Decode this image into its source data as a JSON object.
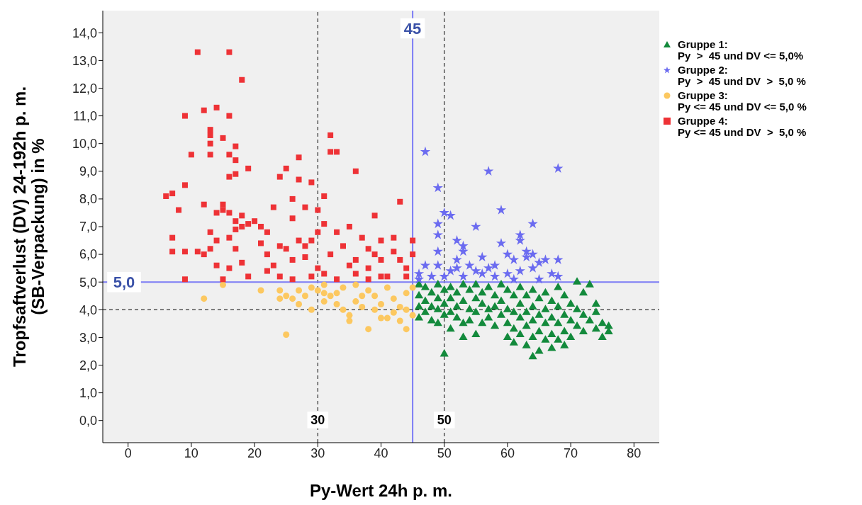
{
  "chart_data": {
    "type": "scatter",
    "xlabel": "Py-Wert 24h p. m.",
    "ylabel": "Tropfsaftverlust (DV) 24-192h p. m.\n(SB-Verpackung) in %",
    "xlim": [
      -4,
      84
    ],
    "xticks": [
      0,
      10,
      20,
      30,
      40,
      50,
      60,
      70,
      80
    ],
    "ylim": [
      -0.8,
      14.8
    ],
    "yticks": [
      {
        "value": 0,
        "label": "0,0"
      },
      {
        "value": 1,
        "label": "1,0"
      },
      {
        "value": 2,
        "label": "2,0"
      },
      {
        "value": 3,
        "label": "3,0"
      },
      {
        "value": 4,
        "label": "4,0"
      },
      {
        "value": 5,
        "label": "5,0"
      },
      {
        "value": 6,
        "label": "6,0"
      },
      {
        "value": 7,
        "label": "7,0"
      },
      {
        "value": 8,
        "label": "8,0"
      },
      {
        "value": 9,
        "label": "9,0"
      },
      {
        "value": 10,
        "label": "10,0"
      },
      {
        "value": 11,
        "label": "11,0"
      },
      {
        "value": 12,
        "label": "12,0"
      },
      {
        "value": 13,
        "label": "13,0"
      },
      {
        "value": 14,
        "label": "14,0"
      }
    ],
    "grid": false,
    "legend": "right",
    "ref_lines": [
      {
        "axis": "x",
        "value": 30,
        "label": "30",
        "color": "#000000",
        "line_style": "dashed"
      },
      {
        "axis": "x",
        "value": 50,
        "label": "50",
        "color": "#000000",
        "line_style": "dashed"
      },
      {
        "axis": "x",
        "value": 45,
        "label": "45",
        "color": "#7b7bf5",
        "line_style": "solid"
      },
      {
        "axis": "y",
        "value": 5,
        "label": "5,0",
        "color": "#7b7bf5",
        "line_style": "solid"
      },
      {
        "axis": "y",
        "value": 4,
        "label": null,
        "color": "#000000",
        "line_style": "dashed"
      }
    ],
    "series": [
      {
        "name": "Gruppe 1:\nPy  >  45 und DV <= 5,0%",
        "color": "#138a3c",
        "marker": "triangle",
        "x": [
          46,
          46,
          46,
          46,
          47,
          47,
          47,
          48,
          48,
          48,
          49,
          49,
          49,
          49,
          50,
          50,
          50,
          50,
          51,
          51,
          51,
          51,
          52,
          52,
          52,
          53,
          53,
          53,
          53,
          54,
          54,
          54,
          55,
          55,
          55,
          55,
          56,
          56,
          56,
          57,
          57,
          57,
          58,
          58,
          58,
          59,
          59,
          59,
          60,
          60,
          60,
          60,
          61,
          61,
          61,
          61,
          62,
          62,
          62,
          62,
          63,
          63,
          63,
          63,
          64,
          64,
          64,
          64,
          64,
          65,
          65,
          65,
          65,
          66,
          66,
          66,
          66,
          67,
          67,
          67,
          67,
          68,
          68,
          68,
          68,
          69,
          69,
          69,
          69,
          70,
          70,
          70,
          71,
          71,
          71,
          72,
          72,
          72,
          73,
          73,
          74,
          74,
          75,
          75,
          76,
          76,
          74
        ],
        "values": [
          4.9,
          4.5,
          4.1,
          3.7,
          4.8,
          4.3,
          3.9,
          4.6,
          4.1,
          3.6,
          4.9,
          4.4,
          4.0,
          3.5,
          4.7,
          4.2,
          3.8,
          2.4,
          4.8,
          4.4,
          3.9,
          3.3,
          4.6,
          4.1,
          3.7,
          4.9,
          4.3,
          3.5,
          3.0,
          4.7,
          4.0,
          3.6,
          4.9,
          4.4,
          3.9,
          3.1,
          4.6,
          4.2,
          3.5,
          4.8,
          4.0,
          3.7,
          4.5,
          4.1,
          3.4,
          4.9,
          4.3,
          3.8,
          4.7,
          4.0,
          3.5,
          3.0,
          4.5,
          3.9,
          3.3,
          2.8,
          4.8,
          4.2,
          3.7,
          3.1,
          4.5,
          3.9,
          3.4,
          2.7,
          4.7,
          4.1,
          3.6,
          3.0,
          2.3,
          4.4,
          3.8,
          3.2,
          2.5,
          4.6,
          4.0,
          3.5,
          2.9,
          4.3,
          3.7,
          3.1,
          2.6,
          4.8,
          4.1,
          3.5,
          2.9,
          4.5,
          3.8,
          3.2,
          2.7,
          4.2,
          3.6,
          3.0,
          5.0,
          4.0,
          3.4,
          4.6,
          3.8,
          3.2,
          4.9,
          3.6,
          4.2,
          3.3,
          3.0,
          3.5,
          3.2,
          3.4,
          3.9
        ]
      },
      {
        "name": "Gruppe 2:\nPy  >  45 und DV  >  5,0 %",
        "color": "#6b6bf0",
        "marker": "star",
        "x": [
          47,
          49,
          57,
          68,
          50,
          51,
          59,
          64,
          49,
          55,
          49,
          52,
          53,
          59,
          62,
          62,
          49,
          53,
          60,
          63,
          64,
          52,
          56,
          58,
          61,
          63,
          65,
          66,
          68,
          46,
          47,
          48,
          49,
          51,
          52,
          54,
          55,
          56,
          57,
          60,
          62,
          64,
          67,
          68,
          50,
          53,
          58,
          46,
          61,
          65
        ],
        "values": [
          9.7,
          8.4,
          9.0,
          9.1,
          7.5,
          7.4,
          7.6,
          7.1,
          7.1,
          7.0,
          6.7,
          6.5,
          6.3,
          6.4,
          6.7,
          6.5,
          6.1,
          6.1,
          6.0,
          6.1,
          6.0,
          5.8,
          5.9,
          5.6,
          5.8,
          5.9,
          5.7,
          5.8,
          5.8,
          5.3,
          5.6,
          5.2,
          5.6,
          5.4,
          5.5,
          5.6,
          5.4,
          5.3,
          5.5,
          5.3,
          5.4,
          5.5,
          5.3,
          5.2,
          5.2,
          5.2,
          5.2,
          5.1,
          5.1,
          5.1
        ]
      },
      {
        "name": "Gruppe 3:\nPy <= 45 und DV <= 5,0 %",
        "color": "#fcc860",
        "marker": "circle",
        "x": [
          12,
          15,
          21,
          24,
          24,
          25,
          26,
          27,
          27,
          25,
          28,
          29,
          29,
          30,
          31,
          31,
          32,
          33,
          33,
          34,
          34,
          35,
          35,
          36,
          37,
          37,
          38,
          38,
          39,
          39,
          40,
          40,
          41,
          41,
          42,
          42,
          43,
          43,
          44,
          44,
          44,
          45,
          45,
          36,
          31
        ],
        "values": [
          4.4,
          4.9,
          4.7,
          4.7,
          4.4,
          4.5,
          4.4,
          4.7,
          4.2,
          3.1,
          4.5,
          4.0,
          4.8,
          4.7,
          4.6,
          4.3,
          4.5,
          4.6,
          4.2,
          4.8,
          4.0,
          3.8,
          3.6,
          4.3,
          4.5,
          4.1,
          3.3,
          4.7,
          4.0,
          4.5,
          3.7,
          4.2,
          4.8,
          3.7,
          4.4,
          3.9,
          4.1,
          3.6,
          3.3,
          4.0,
          4.6,
          3.8,
          4.8,
          4.9,
          4.9
        ]
      },
      {
        "name": "Gruppe 4:\nPy <= 45 und DV  >  5,0 %",
        "color": "#ee3236",
        "marker": "square",
        "x": [
          11,
          16,
          18,
          9,
          12,
          14,
          16,
          13,
          13,
          15,
          13,
          17,
          10,
          13,
          16,
          17,
          17,
          19,
          16,
          6,
          7,
          9,
          12,
          15,
          8,
          14,
          15,
          16,
          17,
          18,
          17,
          13,
          18,
          19,
          20,
          21,
          22,
          23,
          24,
          25,
          26,
          27,
          27,
          29,
          31,
          32,
          33,
          32,
          36,
          28,
          30,
          26,
          11,
          7,
          7,
          9,
          12,
          13,
          14,
          16,
          17,
          14,
          15,
          16,
          18,
          19,
          9,
          21,
          22,
          23,
          24,
          25,
          26,
          27,
          28,
          28,
          29,
          30,
          31,
          30,
          29,
          31,
          32,
          33,
          34,
          35,
          35,
          36,
          37,
          38,
          38,
          39,
          39,
          40,
          40,
          41,
          42,
          43,
          44,
          43,
          42,
          45,
          45,
          44,
          22,
          24,
          26,
          33,
          36,
          38,
          40
        ],
        "values": [
          13.3,
          13.3,
          12.3,
          11.0,
          11.2,
          11.3,
          11.0,
          10.5,
          10.3,
          10.2,
          10.0,
          9.9,
          9.6,
          9.6,
          9.6,
          9.4,
          8.9,
          9.1,
          8.8,
          8.1,
          8.2,
          8.5,
          7.8,
          7.8,
          7.6,
          7.5,
          7.6,
          7.5,
          7.2,
          7.4,
          6.9,
          6.8,
          7.0,
          7.1,
          7.2,
          7.0,
          6.8,
          7.7,
          8.8,
          9.1,
          8.0,
          9.5,
          8.7,
          8.6,
          8.1,
          10.3,
          9.7,
          9.7,
          9.0,
          7.7,
          7.6,
          7.3,
          6.1,
          6.6,
          6.1,
          6.1,
          6.0,
          6.2,
          6.5,
          6.6,
          6.2,
          5.6,
          5.1,
          5.5,
          5.7,
          5.2,
          5.1,
          6.4,
          6.0,
          5.6,
          6.3,
          6.2,
          5.8,
          6.5,
          6.3,
          5.9,
          6.5,
          6.8,
          7.1,
          5.5,
          5.2,
          5.3,
          6.0,
          6.8,
          6.3,
          7.0,
          5.6,
          5.8,
          6.6,
          6.2,
          5.5,
          6.0,
          7.4,
          6.5,
          5.8,
          5.2,
          6.1,
          5.8,
          5.5,
          7.9,
          6.6,
          6.5,
          6.0,
          5.2,
          5.4,
          5.2,
          5.1,
          5.1,
          5.3,
          5.1,
          5.2
        ]
      }
    ]
  }
}
